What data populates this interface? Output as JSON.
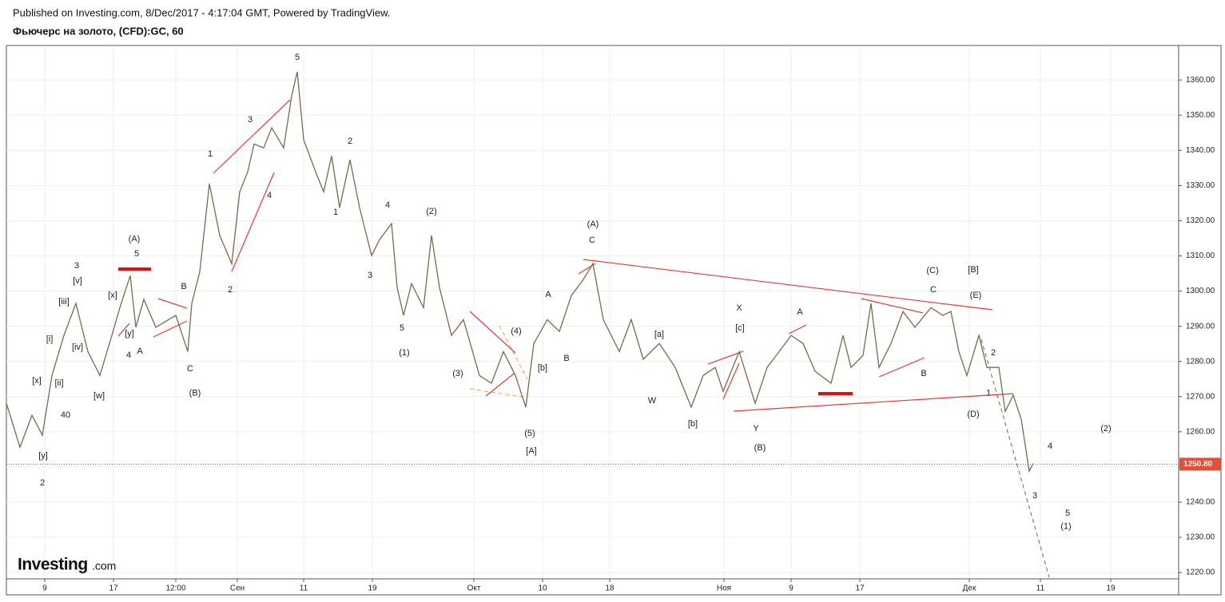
{
  "header": {
    "published": "Published on Investing.com, 8/Dec/2017 - 4:17:04 GMT, Powered by TradingView.",
    "symbol": "Фьючерс на золото, (CFD):GC, 60"
  },
  "logo": {
    "name": "Investing",
    "suffix": ".com"
  },
  "chart_data": {
    "type": "line",
    "xlim": [
      0,
      1467
    ],
    "ylim": [
      1218.2,
      1369.8
    ],
    "grid": true,
    "xticks": [
      {
        "value": 48,
        "label": "9"
      },
      {
        "value": 134,
        "label": "17"
      },
      {
        "value": 212,
        "label": "12:00"
      },
      {
        "value": 289,
        "label": "Сен"
      },
      {
        "value": 372,
        "label": "11"
      },
      {
        "value": 458,
        "label": "19"
      },
      {
        "value": 585,
        "label": "Окт"
      },
      {
        "value": 671,
        "label": "10"
      },
      {
        "value": 755,
        "label": "18"
      },
      {
        "value": 898,
        "label": "Ноя"
      },
      {
        "value": 982,
        "label": "9"
      },
      {
        "value": 1068,
        "label": "17"
      },
      {
        "value": 1205,
        "label": "Дек"
      },
      {
        "value": 1294,
        "label": "11"
      },
      {
        "value": 1382,
        "label": "19"
      }
    ],
    "yticks": [
      {
        "value": 1220,
        "label": "1220.00"
      },
      {
        "value": 1230,
        "label": "1230.00"
      },
      {
        "value": 1240,
        "label": "1240.00"
      },
      {
        "value": 1250,
        "label": "1250.00"
      },
      {
        "value": 1260,
        "label": "1260.00"
      },
      {
        "value": 1270,
        "label": "1270.00"
      },
      {
        "value": 1280,
        "label": "1280.00"
      },
      {
        "value": 1290,
        "label": "1290.00"
      },
      {
        "value": 1300,
        "label": "1300.00"
      },
      {
        "value": 1310,
        "label": "1310.00"
      },
      {
        "value": 1320,
        "label": "1320.00"
      },
      {
        "value": 1330,
        "label": "1330.00"
      },
      {
        "value": 1340,
        "label": "1340.00"
      },
      {
        "value": 1350,
        "label": "1350.00"
      },
      {
        "value": 1360,
        "label": "1360.00"
      }
    ],
    "last_price": {
      "value": 1250.8,
      "label": "1250.80"
    },
    "series": [
      {
        "color": "#7a6a4a",
        "x": [
          0,
          17,
          32,
          45,
          57,
          72,
          87,
          102,
          117,
          132,
          142,
          155,
          162,
          172,
          187,
          212,
          227,
          232,
          242,
          254,
          267,
          282,
          292,
          302,
          310,
          322,
          332,
          347,
          357,
          364,
          372,
          387,
          397,
          407,
          417,
          430,
          442,
          457,
          467,
          482,
          489,
          497,
          507,
          522,
          532,
          542,
          557,
          572,
          592,
          607,
          622,
          637,
          650,
          660,
          677,
          692,
          707,
          722,
          734,
          747,
          767,
          782,
          797,
          817,
          837,
          857,
          872,
          887,
          897,
          917,
          937,
          952,
          967,
          982,
          997,
          1012,
          1032,
          1047,
          1057,
          1072,
          1082,
          1092,
          1107,
          1122,
          1137,
          1157,
          1172,
          1182,
          1192,
          1202,
          1217,
          1227,
          1242,
          1250,
          1260,
          1270,
          1280,
          1285
        ],
        "values": [
          1268.1,
          1255.6,
          1264.7,
          1259,
          1276,
          1287.4,
          1296.5,
          1282.8,
          1276,
          1287.4,
          1295.3,
          1304.4,
          1289.7,
          1297.6,
          1289.7,
          1293.1,
          1282.8,
          1296.5,
          1305.5,
          1330.5,
          1315.8,
          1307.8,
          1328.2,
          1333.9,
          1341.8,
          1340.7,
          1346.4,
          1340.7,
          1355.5,
          1362.3,
          1343,
          1333.9,
          1328.2,
          1338.4,
          1323.7,
          1337.3,
          1323.7,
          1310.1,
          1314.6,
          1319.2,
          1301,
          1293.1,
          1302.1,
          1295.3,
          1315.8,
          1301,
          1287.4,
          1291.9,
          1276,
          1273.8,
          1282.8,
          1276,
          1267,
          1285.1,
          1291.9,
          1288.5,
          1298.7,
          1303.3,
          1307.8,
          1291.9,
          1282.8,
          1291.9,
          1280.6,
          1285.1,
          1278.3,
          1267,
          1276,
          1278.3,
          1271.5,
          1282.8,
          1268.1,
          1278.3,
          1282.8,
          1287.4,
          1285.1,
          1277.2,
          1273.8,
          1287.4,
          1278.3,
          1281.7,
          1296.5,
          1278.3,
          1285.1,
          1294.2,
          1289.7,
          1295.3,
          1293.1,
          1294.2,
          1282.8,
          1276,
          1287.4,
          1278.3,
          1278.3,
          1265.8,
          1270.4,
          1263.6,
          1248.8,
          1251
        ]
      }
    ],
    "annotations": [
      {
        "text": "(A)",
        "x": 160,
        "y": 1314.8
      },
      {
        "text": "5",
        "x": 163,
        "y": 1310.5
      },
      {
        "text": "3",
        "x": 88,
        "y": 1307.1
      },
      {
        "text": "[v]",
        "x": 89,
        "y": 1302.8
      },
      {
        "text": "[iii]",
        "x": 72,
        "y": 1296.9
      },
      {
        "text": "[i]",
        "x": 54,
        "y": 1286.3
      },
      {
        "text": "[iv]",
        "x": 89,
        "y": 1284
      },
      {
        "text": "[x]",
        "x": 38,
        "y": 1274.5
      },
      {
        "text": "[ii]",
        "x": 66,
        "y": 1273.8
      },
      {
        "text": "[w]",
        "x": 116,
        "y": 1270.1
      },
      {
        "text": "40",
        "x": 74,
        "y": 1264.7
      },
      {
        "text": "[y]",
        "x": 46,
        "y": 1253.1
      },
      {
        "text": "2",
        "x": 45,
        "y": 1245.4
      },
      {
        "text": "[x]",
        "x": 133,
        "y": 1298.7
      },
      {
        "text": "[y]",
        "x": 154,
        "y": 1287.8
      },
      {
        "text": "4",
        "x": 153,
        "y": 1281.7
      },
      {
        "text": "A",
        "x": 167,
        "y": 1282.9
      },
      {
        "text": "B",
        "x": 222,
        "y": 1301.2
      },
      {
        "text": "C",
        "x": 230,
        "y": 1277.9
      },
      {
        "text": "(B)",
        "x": 236,
        "y": 1271
      },
      {
        "text": "1",
        "x": 255,
        "y": 1338.9
      },
      {
        "text": "2",
        "x": 280,
        "y": 1300.3
      },
      {
        "text": "3",
        "x": 305,
        "y": 1348.7
      },
      {
        "text": "4",
        "x": 329,
        "y": 1327.1
      },
      {
        "text": "5",
        "x": 364,
        "y": 1366.4
      },
      {
        "text": "2",
        "x": 430,
        "y": 1342.5
      },
      {
        "text": "1",
        "x": 412,
        "y": 1322.3
      },
      {
        "text": "4",
        "x": 477,
        "y": 1324.4
      },
      {
        "text": "3",
        "x": 455,
        "y": 1304.4
      },
      {
        "text": "5",
        "x": 495,
        "y": 1289.4
      },
      {
        "text": "(1)",
        "x": 498,
        "y": 1282.4
      },
      {
        "text": "(2)",
        "x": 532,
        "y": 1322.6
      },
      {
        "text": "(3)",
        "x": 565,
        "y": 1276.5
      },
      {
        "text": "(4)",
        "x": 638,
        "y": 1288.5
      },
      {
        "text": "[b]",
        "x": 671,
        "y": 1278.1
      },
      {
        "text": "(5)",
        "x": 655,
        "y": 1259.5
      },
      {
        "text": "[A]",
        "x": 657,
        "y": 1254.5
      },
      {
        "text": "A",
        "x": 678,
        "y": 1299
      },
      {
        "text": "B",
        "x": 701,
        "y": 1280.8
      },
      {
        "text": "(A)",
        "x": 734,
        "y": 1318.9
      },
      {
        "text": "C",
        "x": 733,
        "y": 1314.4
      },
      {
        "text": "[a]",
        "x": 817,
        "y": 1287.6
      },
      {
        "text": "W",
        "x": 808,
        "y": 1268.8
      },
      {
        "text": "[b]",
        "x": 859,
        "y": 1262.2
      },
      {
        "text": "X",
        "x": 917,
        "y": 1295.1
      },
      {
        "text": "[c]",
        "x": 918,
        "y": 1289.4
      },
      {
        "text": "Y",
        "x": 938,
        "y": 1260.8
      },
      {
        "text": "(B)",
        "x": 943,
        "y": 1255.4
      },
      {
        "text": "A",
        "x": 993,
        "y": 1294
      },
      {
        "text": "(C)",
        "x": 1159,
        "y": 1305.8
      },
      {
        "text": "C",
        "x": 1160,
        "y": 1300.3
      },
      {
        "text": "[B]",
        "x": 1210,
        "y": 1306
      },
      {
        "text": "(E)",
        "x": 1213,
        "y": 1298.7
      },
      {
        "text": "B",
        "x": 1148,
        "y": 1276.5
      },
      {
        "text": "2",
        "x": 1235,
        "y": 1282.4
      },
      {
        "text": "1",
        "x": 1229,
        "y": 1271
      },
      {
        "text": "(D)",
        "x": 1210,
        "y": 1264.9
      },
      {
        "text": "4",
        "x": 1306,
        "y": 1255.9
      },
      {
        "text": "(2)",
        "x": 1376,
        "y": 1260.8
      },
      {
        "text": "3",
        "x": 1287,
        "y": 1241.8
      },
      {
        "text": "5",
        "x": 1328,
        "y": 1236.8
      },
      {
        "text": "(1)",
        "x": 1326,
        "y": 1233
      }
    ]
  }
}
